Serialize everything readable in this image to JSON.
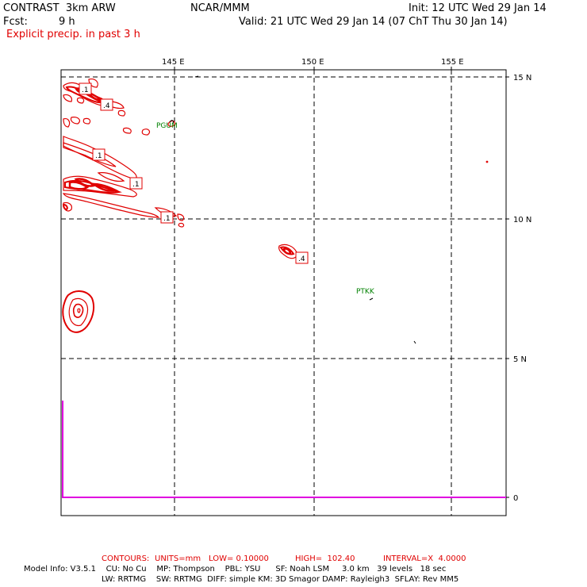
{
  "header": {
    "model": "CONTRAST  3km ARW",
    "org": "NCAR/MMM",
    "init": "Init: 12 UTC Wed 29 Jan 14",
    "fcst_label": "Fcst:",
    "fcst_value": "9 h",
    "valid": "Valid: 21 UTC Wed 29 Jan 14 (07 ChT Thu 30 Jan 14)",
    "field": "Explicit precip. in past 3 h"
  },
  "axes": {
    "lon_labels": [
      "145 E",
      "150 E",
      "155 E"
    ],
    "lat_labels": [
      "15 N",
      "10 N",
      "5 N"
    ],
    "bar_axis_label": "0"
  },
  "stations": [
    "PGUM",
    "PTKK"
  ],
  "contour_labels": [
    ".1",
    ".4",
    ".1",
    ".1",
    ".1",
    ".4"
  ],
  "contours_info": {
    "label": "CONTOURS:",
    "units": "UNITS=mm",
    "low": "LOW= 0.10000",
    "high": "HIGH=  102.40",
    "interval": "INTERVAL=X  4.0000"
  },
  "model_info": {
    "line1": "Model Info: V3.5.1    CU: No Cu    MP: Thompson    PBL: YSU      SF: Noah LSM     3.0 km   39 levels   18 sec",
    "line2": "LW: RRTMG    SW: RRTMG  DIFF: simple KM: 3D Smagor DAMP: Rayleigh3  SFLAY: Rev MM5"
  },
  "colors": {
    "precip_contour": "#e00000",
    "station_label": "#008000",
    "bar": "#e000e0",
    "grid": "#000000"
  }
}
